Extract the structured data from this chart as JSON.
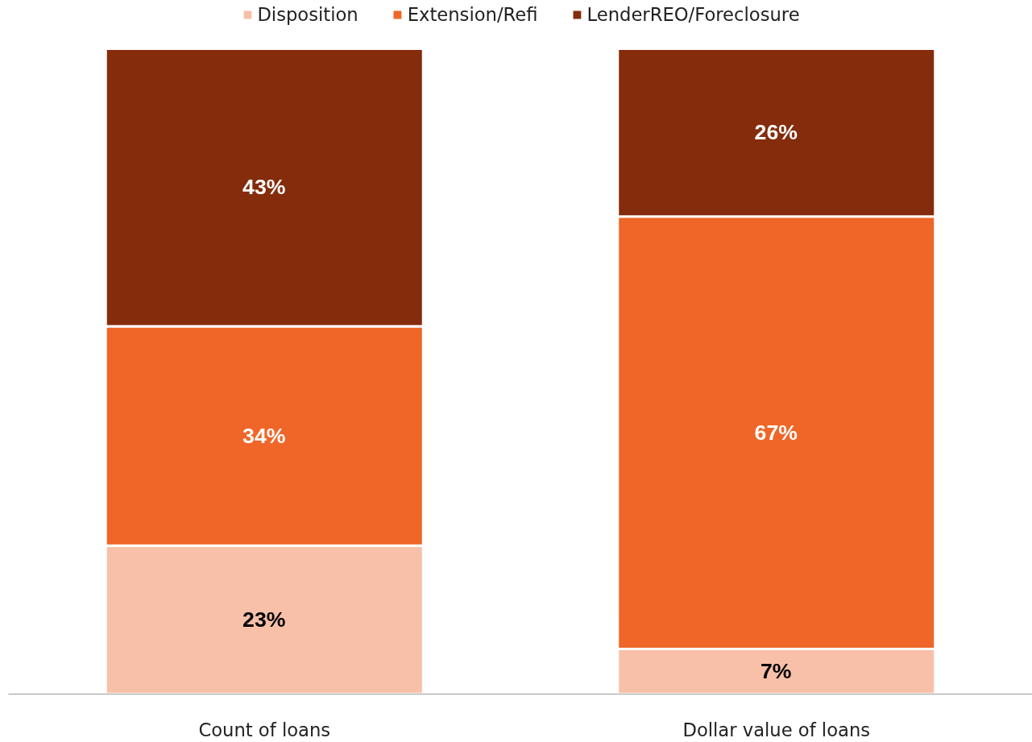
{
  "chart_data": {
    "type": "bar",
    "stacked": true,
    "categories": [
      "Count of loans",
      "Dollar value of loans"
    ],
    "series": [
      {
        "name": "Disposition",
        "color": "#f8c0a8",
        "values": [
          23,
          7
        ],
        "value_labels": [
          "23%",
          "7%"
        ]
      },
      {
        "name": "Extension/Refi",
        "color": "#ef6628",
        "values": [
          34,
          67
        ],
        "value_labels": [
          "34%",
          "67%"
        ]
      },
      {
        "name": "LenderREO/Foreclosure",
        "color": "#842c0c",
        "values": [
          43,
          26
        ],
        "value_labels": [
          "43%",
          "26%"
        ]
      }
    ],
    "tick_labels": "x",
    "grid": false,
    "legend": "top"
  }
}
